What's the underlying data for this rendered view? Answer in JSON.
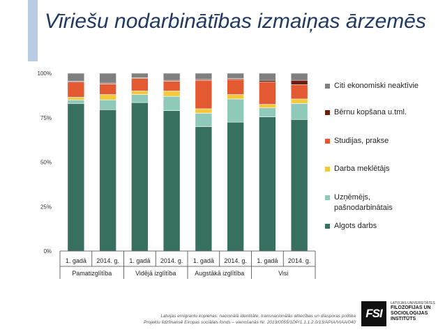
{
  "page": {
    "title": "Vīriešu nodarbinātības izmaiņas ārzemēs",
    "accent_color": "#b8cce4",
    "title_color": "#1f3864"
  },
  "footer": {
    "line1": "Latvijas emigrantu kopienas: nacionālā identitāte, transnacionālās attiecības un diasporas politika",
    "line2": "Projektu līdzfinansē Eiropas sociālais fonds – vienošanās Nr. 2013/0055/1DP/1.1.1.2.0/13/APIA/VIAA/040"
  },
  "logo": {
    "mark": "FSI",
    "top_text": "LATVIJAS UNIVERSITĀTES",
    "main_text": [
      "FILOZOFIJAS UN",
      "SOCIOLOĢIJAS",
      "INSTITŪTS"
    ]
  },
  "chart_data": {
    "type": "bar",
    "stacked": true,
    "percent": true,
    "title": "",
    "ylim": [
      0,
      100
    ],
    "y_ticks": [
      "0%",
      "25%",
      "50%",
      "75%",
      "100%"
    ],
    "categories": [
      "1. gadā",
      "2014. g.",
      "1. gadā",
      "2014. g.",
      "1. gadā",
      "2014. g.",
      "1. gadā",
      "2014. g."
    ],
    "groups": [
      {
        "label": "Pamatizglītība",
        "span": 2
      },
      {
        "label": "Vidējā izglītība",
        "span": 2
      },
      {
        "label": "Augstākā izglītība",
        "span": 2
      },
      {
        "label": "Visi",
        "span": 2
      }
    ],
    "series": [
      {
        "name": "Algots darbs",
        "color": "#376f60",
        "values": [
          83,
          79.5,
          83.5,
          79,
          70,
          72.5,
          75.5,
          74
        ]
      },
      {
        "name": "Uzņēmējs,\npašnodarbinātais",
        "color": "#8fc9b9",
        "values": [
          2,
          5.5,
          4.5,
          8,
          7.5,
          13,
          5,
          9
        ]
      },
      {
        "name": "Darba meklētājs",
        "color": "#f3c93b",
        "values": [
          1.5,
          3,
          2,
          3,
          2.5,
          2.5,
          2,
          2.5
        ]
      },
      {
        "name": "Studijas, prakse",
        "color": "#e35a32",
        "values": [
          8.5,
          6,
          7,
          5.5,
          16,
          8.5,
          12.5,
          8
        ]
      },
      {
        "name": "Bērnu kopšana u.tml.",
        "color": "#6b1d0d",
        "values": [
          0.5,
          0.5,
          0.5,
          0.5,
          0.5,
          0.5,
          1,
          2.5
        ]
      },
      {
        "name": "Citi ekonomiski neaktīvie",
        "color": "#7f7f7f",
        "values": [
          4.5,
          5.5,
          2.5,
          4,
          3.5,
          3,
          4,
          4
        ]
      }
    ]
  }
}
